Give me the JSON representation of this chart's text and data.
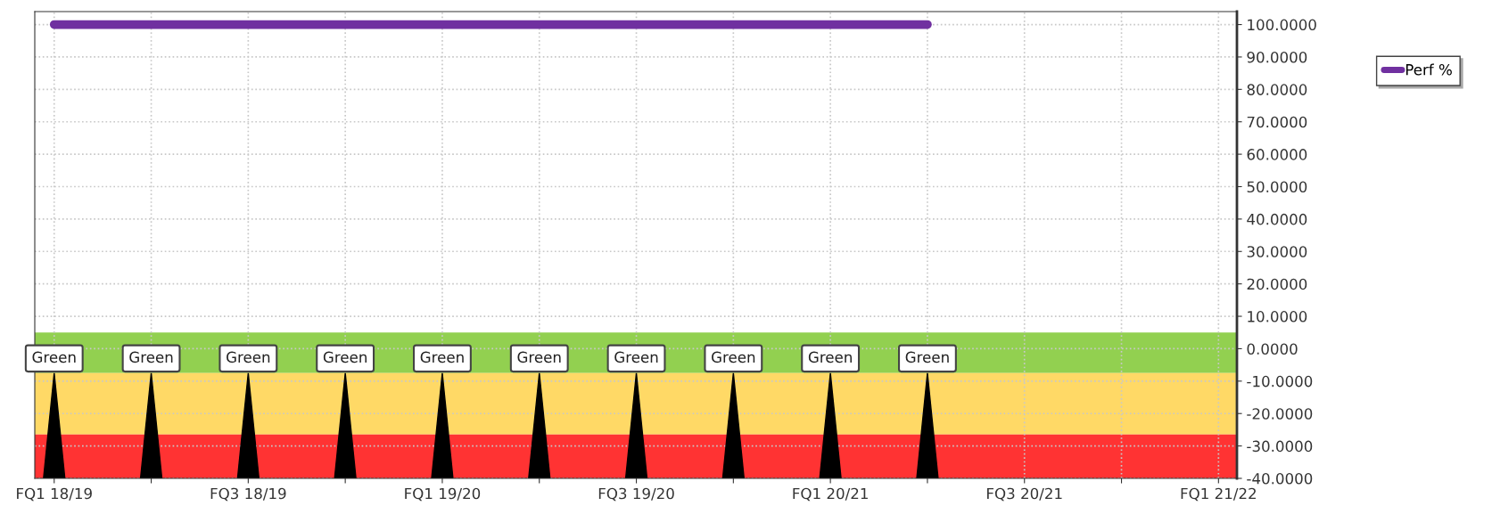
{
  "chart_data": {
    "type": "line",
    "categories": [
      "FQ1 18/19",
      null,
      "FQ3 18/19",
      null,
      "FQ1 19/20",
      null,
      "FQ3 19/20",
      null,
      "FQ1 20/21",
      null,
      "FQ3 20/21",
      null,
      "FQ1 21/22"
    ],
    "series": [
      {
        "name": "Perf %",
        "color": "#7030a0",
        "values": [
          100,
          100,
          100,
          100,
          100,
          100,
          100,
          100,
          100,
          100,
          null,
          null,
          null
        ]
      }
    ],
    "ylim": [
      -40,
      104
    ],
    "yticks": [
      {
        "value": 100,
        "label": "100.0000"
      },
      {
        "value": 90,
        "label": "90.0000"
      },
      {
        "value": 80,
        "label": "80.0000"
      },
      {
        "value": 70,
        "label": "70.0000"
      },
      {
        "value": 60,
        "label": "60.0000"
      },
      {
        "value": 50,
        "label": "50.0000"
      },
      {
        "value": 40,
        "label": "40.0000"
      },
      {
        "value": 30,
        "label": "30.0000"
      },
      {
        "value": 20,
        "label": "20.0000"
      },
      {
        "value": 10,
        "label": "10.0000"
      },
      {
        "value": 0,
        "label": "0.0000"
      },
      {
        "value": -10,
        "label": "-10.0000"
      },
      {
        "value": -20,
        "label": "-20.0000"
      },
      {
        "value": -30,
        "label": "-30.0000"
      },
      {
        "value": -40,
        "label": "-40.0000"
      }
    ],
    "bands": [
      {
        "axis": "y",
        "from": -7.5,
        "to": 5,
        "color": "#92d050"
      },
      {
        "axis": "y",
        "from": -26.5,
        "to": -7.5,
        "color": "#ffd966"
      },
      {
        "axis": "y",
        "from": -40,
        "to": -26.5,
        "color": "#ff3333"
      }
    ],
    "annotations": [
      {
        "text": "Green",
        "x": "FQ1 18/19",
        "y": -7.5
      },
      {
        "text": "Green",
        "y": -7.5
      },
      {
        "text": "Green",
        "x": "FQ3 18/19",
        "y": -7.5
      },
      {
        "text": "Green",
        "y": -7.5
      },
      {
        "text": "Green",
        "x": "FQ1 19/20",
        "y": -7.5
      },
      {
        "text": "Green",
        "y": -7.5
      },
      {
        "text": "Green",
        "x": "FQ3 19/20",
        "y": -7.5
      },
      {
        "text": "Green",
        "y": -7.5
      },
      {
        "text": "Green",
        "x": "FQ1 20/21",
        "y": -7.5
      },
      {
        "text": "Green",
        "y": -7.5
      }
    ],
    "grid": true,
    "legend": "right",
    "marker": "none",
    "line_style": "solid"
  }
}
